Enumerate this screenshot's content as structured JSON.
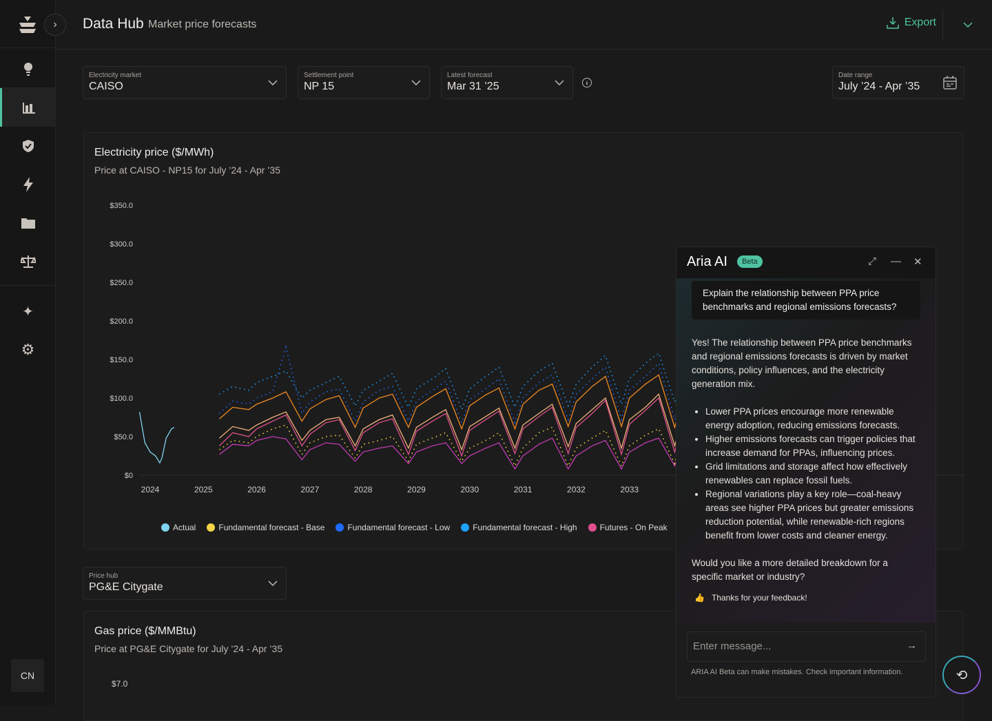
{
  "header": {
    "title": "Data Hub",
    "subtitle": "Market price forecasts",
    "export_label": "Export"
  },
  "sidebar": {
    "items": [
      "insights",
      "data-hub",
      "shield",
      "energy",
      "folder",
      "balance",
      "ai",
      "settings"
    ],
    "active": "data-hub",
    "user_initials": "CN"
  },
  "filters": {
    "market": {
      "label": "Electricity market",
      "value": "CAISO"
    },
    "settlement": {
      "label": "Settlement point",
      "value": "NP 15"
    },
    "forecast": {
      "label": "Latest forecast",
      "value": "Mar 31 ’25"
    },
    "date_range": {
      "label": "Date range",
      "value": "July ’24 - Apr ’35"
    },
    "price_hub": {
      "label": "Price hub",
      "value": "PG&E Citygate"
    }
  },
  "electricity_card": {
    "title": "Electricity price ($/MWh)",
    "subtitle": "Price at CAISO - NP15 for July ’24 - Apr ’35"
  },
  "gas_card": {
    "title": "Gas price ($/MMBtu)",
    "subtitle": "Price at PG&E Citygate for July ’24 - Apr ’35",
    "first_tick": "$7.0"
  },
  "chart_data": {
    "type": "line",
    "ylim": [
      0,
      350
    ],
    "yticks": [
      "$0",
      "$50.0",
      "$100.0",
      "$150.0",
      "$200.0",
      "$250.0",
      "$300.0",
      "$350.0"
    ],
    "ytick_values": [
      0,
      50,
      100,
      150,
      200,
      250,
      300,
      350
    ],
    "xticks": [
      "2024",
      "2025",
      "2026",
      "2027",
      "2028",
      "2029",
      "2030",
      "2031",
      "2032",
      "2033"
    ],
    "grid": false,
    "legend_position": "bottom",
    "legend": [
      {
        "name": "Actual",
        "color": "#7fd3f0"
      },
      {
        "name": "Fundamental forecast - Base",
        "color": "#f5d547"
      },
      {
        "name": "Fundamental forecast - Low",
        "color": "#1f6bff"
      },
      {
        "name": "Fundamental forecast - High",
        "color": "#1ea0ff"
      },
      {
        "name": "Futures - On Peak",
        "color": "#e0508a"
      }
    ],
    "actual": {
      "x": [
        2023.8,
        2023.9,
        2024.0,
        2024.1,
        2024.18,
        2024.22,
        2024.3,
        2024.4,
        2024.45
      ],
      "y": [
        82,
        42,
        30,
        25,
        16,
        22,
        48,
        60,
        62
      ],
      "color": "#7fd3f0"
    },
    "x": [
      2025.3,
      2025.55,
      2025.85,
      2026.0,
      2026.3,
      2026.55,
      2026.85,
      2027.0,
      2027.3,
      2027.55,
      2027.85,
      2028.0,
      2028.3,
      2028.55,
      2028.85,
      2029.0,
      2029.3,
      2029.55,
      2029.85,
      2030.0,
      2030.3,
      2030.55,
      2030.85,
      2031.0,
      2031.3,
      2031.55,
      2031.85,
      2032.0,
      2032.3,
      2032.55,
      2032.85,
      2033.0,
      2033.3,
      2033.55,
      2033.85,
      2034.0
    ],
    "series": [
      {
        "color": "#f08a24",
        "dotted": false,
        "values": [
          73,
          88,
          85,
          92,
          100,
          108,
          70,
          86,
          98,
          103,
          62,
          87,
          100,
          105,
          62,
          88,
          102,
          112,
          60,
          90,
          104,
          113,
          60,
          92,
          110,
          118,
          63,
          95,
          115,
          128,
          63,
          100,
          118,
          130,
          62,
          100
        ]
      },
      {
        "color": "#f2b27a",
        "dotted": false,
        "values": [
          48,
          63,
          58,
          65,
          75,
          82,
          45,
          58,
          72,
          75,
          38,
          60,
          72,
          78,
          35,
          62,
          75,
          85,
          33,
          63,
          76,
          87,
          35,
          65,
          80,
          92,
          37,
          67,
          85,
          100,
          35,
          72,
          88,
          105,
          38,
          75
        ]
      },
      {
        "name": "Futures - On Peak",
        "color": "#e0508a",
        "dotted": false,
        "values": [
          38,
          55,
          50,
          60,
          70,
          78,
          38,
          53,
          68,
          72,
          32,
          55,
          68,
          73,
          27,
          57,
          70,
          80,
          25,
          58,
          72,
          83,
          28,
          60,
          76,
          88,
          28,
          62,
          80,
          97,
          27,
          66,
          84,
          100,
          30,
          70
        ]
      },
      {
        "color": "#c03ab0",
        "dotted": false,
        "values": [
          27,
          40,
          38,
          45,
          50,
          47,
          20,
          33,
          42,
          40,
          18,
          30,
          35,
          38,
          15,
          30,
          38,
          42,
          15,
          25,
          35,
          42,
          8,
          25,
          40,
          48,
          8,
          25,
          38,
          45,
          8,
          30,
          42,
          48,
          12,
          45
        ]
      },
      {
        "name": "Fundamental forecast - Base",
        "color": "#f5d547",
        "dotted": true,
        "values": [
          33,
          45,
          42,
          50,
          60,
          65,
          27,
          42,
          50,
          52,
          22,
          40,
          45,
          50,
          18,
          40,
          48,
          55,
          18,
          35,
          45,
          55,
          12,
          35,
          55,
          62,
          12,
          35,
          48,
          58,
          12,
          38,
          52,
          60,
          15,
          55
        ]
      },
      {
        "name": "Fundamental forecast - Low",
        "color": "#1f6bff",
        "dotted": true,
        "values": [
          80,
          96,
          92,
          100,
          108,
          166,
          80,
          95,
          108,
          112,
          70,
          95,
          110,
          115,
          70,
          96,
          110,
          122,
          68,
          98,
          112,
          125,
          68,
          100,
          120,
          130,
          72,
          105,
          125,
          140,
          72,
          110,
          128,
          145,
          72,
          110
        ]
      },
      {
        "name": "Fundamental forecast - High",
        "color": "#1ea0ff",
        "dotted": true,
        "values": [
          105,
          115,
          110,
          120,
          128,
          135,
          100,
          110,
          120,
          128,
          90,
          110,
          122,
          132,
          88,
          112,
          125,
          138,
          85,
          112,
          128,
          140,
          88,
          115,
          135,
          145,
          90,
          118,
          140,
          155,
          92,
          125,
          145,
          158,
          95,
          130
        ]
      }
    ]
  },
  "aria": {
    "title": "Aria AI",
    "badge": "Beta",
    "question": "Explain the relationship between PPA price benchmarks and regional emissions forecasts?",
    "intro": "Yes! The relationship between PPA price benchmarks and regional emissions forecasts is driven by market conditions, policy influences, and the electricity generation mix.",
    "bullets": [
      "Lower PPA prices encourage more renewable energy adoption, reducing emissions forecasts.",
      "Higher emissions forecasts can trigger policies that increase demand for PPAs, influencing prices.",
      "Grid limitations and storage affect how effectively renewables can replace fossil fuels.",
      "Regional variations play a key role—coal-heavy areas see higher PPA prices but greater emissions reduction potential, while renewable-rich regions benefit from lower costs and cleaner energy."
    ],
    "followup": "Would you like a more detailed breakdown for a specific market or industry?",
    "feedback": "Thanks for your feedback!",
    "input_placeholder": "Enter message...",
    "disclaimer": "ARIA AI Beta can make mistakes. Check important information."
  }
}
